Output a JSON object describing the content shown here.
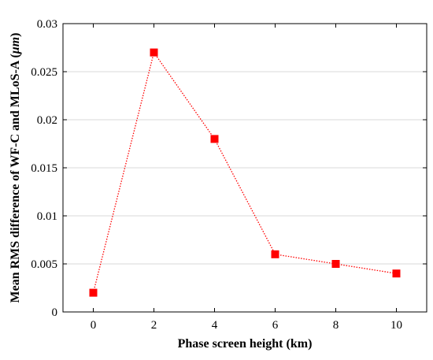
{
  "chart_data": {
    "type": "line",
    "title": "",
    "xlabel": "Phase screen height (km)",
    "ylabel_main": "Mean RMS difference of WF-C and MLoS-A (",
    "ylabel_unit": "μm",
    "ylabel_close": ")",
    "x": [
      0,
      2,
      4,
      6,
      8,
      10
    ],
    "series": [
      {
        "name": "",
        "values": [
          0.002,
          0.027,
          0.018,
          0.006,
          0.005,
          0.004
        ],
        "color": "#ff0000",
        "line_style": "dotted",
        "marker": "square"
      }
    ],
    "xlim": [
      -1,
      11
    ],
    "ylim": [
      0,
      0.03
    ],
    "xticks": [
      0,
      2,
      4,
      6,
      8,
      10
    ],
    "xtick_labels": [
      "0",
      "2",
      "4",
      "6",
      "8",
      "10"
    ],
    "yticks": [
      0,
      0.005,
      0.01,
      0.015,
      0.02,
      0.025,
      0.03
    ],
    "ytick_labels": [
      "0",
      "0.005",
      "0.01",
      "0.015",
      "0.02",
      "0.025",
      "0.03"
    ],
    "grid": "horizontal",
    "legend": "none",
    "colors": {
      "series": "#ff0000",
      "grid": "#d9d9d9",
      "axes": "#000000",
      "background": "#ffffff"
    }
  }
}
